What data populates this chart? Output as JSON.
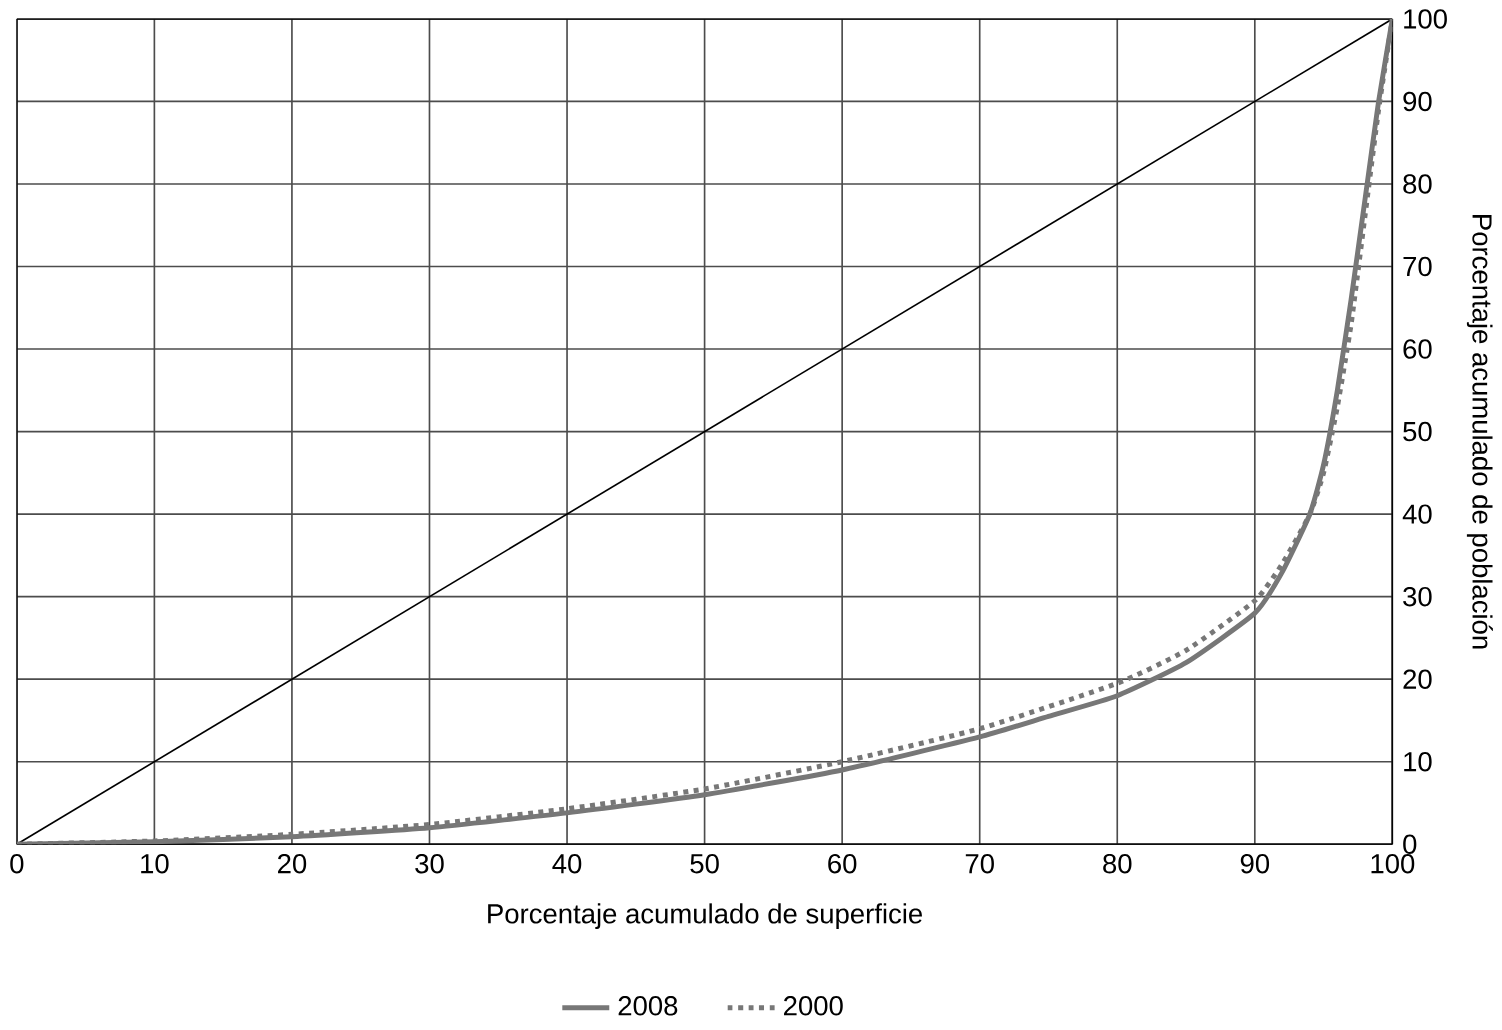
{
  "chart_data": {
    "type": "line",
    "xlabel": "Porcentaje acumulado de superficie",
    "ylabel": "Porcentaje acumulado de población",
    "xlim": [
      0,
      100
    ],
    "ylim": [
      0,
      100
    ],
    "xticks": [
      0,
      10,
      20,
      30,
      40,
      50,
      60,
      70,
      80,
      90,
      100
    ],
    "yticks": [
      0,
      10,
      20,
      30,
      40,
      50,
      60,
      70,
      80,
      90,
      100
    ],
    "grid": true,
    "legend": "bottom",
    "series": [
      {
        "color": "#000000",
        "x": [
          0,
          100
        ],
        "values": [
          0,
          100
        ],
        "line_style": "solid"
      },
      {
        "name": "2008",
        "color": "#777777",
        "line_style": "solid",
        "x": [
          0,
          10,
          20,
          30,
          40,
          50,
          60,
          70,
          75,
          80,
          85,
          90,
          92,
          94,
          95,
          96,
          97,
          98,
          99,
          100
        ],
        "values": [
          0,
          0.3,
          0.9,
          2,
          3.8,
          6,
          9,
          13,
          15.5,
          18,
          22,
          28,
          33,
          40,
          46,
          55,
          66,
          78,
          90,
          100
        ]
      },
      {
        "name": "2000",
        "color": "#777777",
        "line_style": "dotted",
        "x": [
          0,
          10,
          20,
          30,
          40,
          50,
          60,
          70,
          80,
          85,
          90,
          92,
          94,
          95,
          96,
          97,
          98,
          99,
          100
        ],
        "values": [
          0,
          0.4,
          1.2,
          2.4,
          4.3,
          6.7,
          10,
          14,
          19.5,
          23.5,
          29.5,
          34,
          40,
          45,
          53,
          63,
          76,
          89,
          100
        ]
      }
    ]
  }
}
